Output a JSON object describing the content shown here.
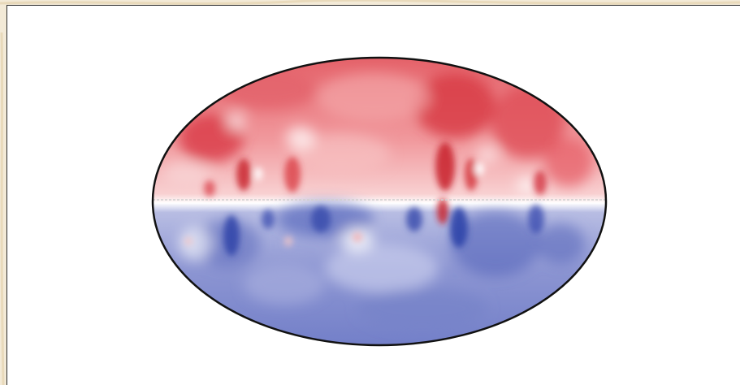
{
  "figure": {
    "projection": "mollweide",
    "colors": {
      "page_background": "#f3ead7",
      "panel_background": "#ffffff",
      "outline": "#111111",
      "equator_line": "#cfcfcf",
      "positive_dark": "#c81e2a",
      "positive_light": "#f6c2c2",
      "neutral": "#ffffff",
      "negative_light": "#b9bde2",
      "negative_dark": "#2f43a8"
    }
  }
}
